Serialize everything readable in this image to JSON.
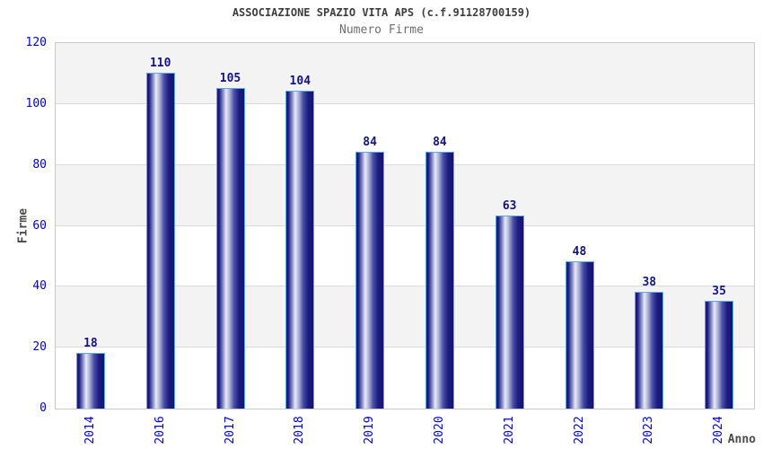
{
  "chart_data": {
    "type": "bar",
    "title": "ASSOCIAZIONE SPAZIO VITA APS (c.f.91128700159)",
    "subtitle": "Numero Firme",
    "xlabel": "Anno",
    "ylabel": "Firme",
    "categories": [
      "2014",
      "2016",
      "2017",
      "2018",
      "2019",
      "2020",
      "2021",
      "2022",
      "2023",
      "2024"
    ],
    "values": [
      18,
      110,
      105,
      104,
      84,
      84,
      63,
      48,
      38,
      35
    ],
    "ylim": [
      0,
      120
    ],
    "yticks": [
      0,
      20,
      40,
      60,
      80,
      100,
      120
    ],
    "grid": true,
    "legend_position": "none",
    "x_tick_rotation_deg": -90,
    "colors": {
      "bar_border": "#5aa8e8",
      "bar_gradient": [
        "#21218c 0%",
        "#15157a 6%",
        "#8a90c8 22%",
        "#e9ebf7 33%",
        "#aab0d8 46%",
        "#4a50a5 62%",
        "#1d1d82 80%",
        "#13136e 100%"
      ],
      "axis_tick_label": "#0000cd",
      "value_label": "#14147d",
      "band_gray": "#f3f3f3",
      "band_white": "#ffffff",
      "grid_line": "#d9d9d9",
      "plot_border": "#c9c9c9",
      "title": "#3d3d3d",
      "subtitle": "#6e6e6e",
      "axis_title": "#4a4a4a"
    }
  }
}
